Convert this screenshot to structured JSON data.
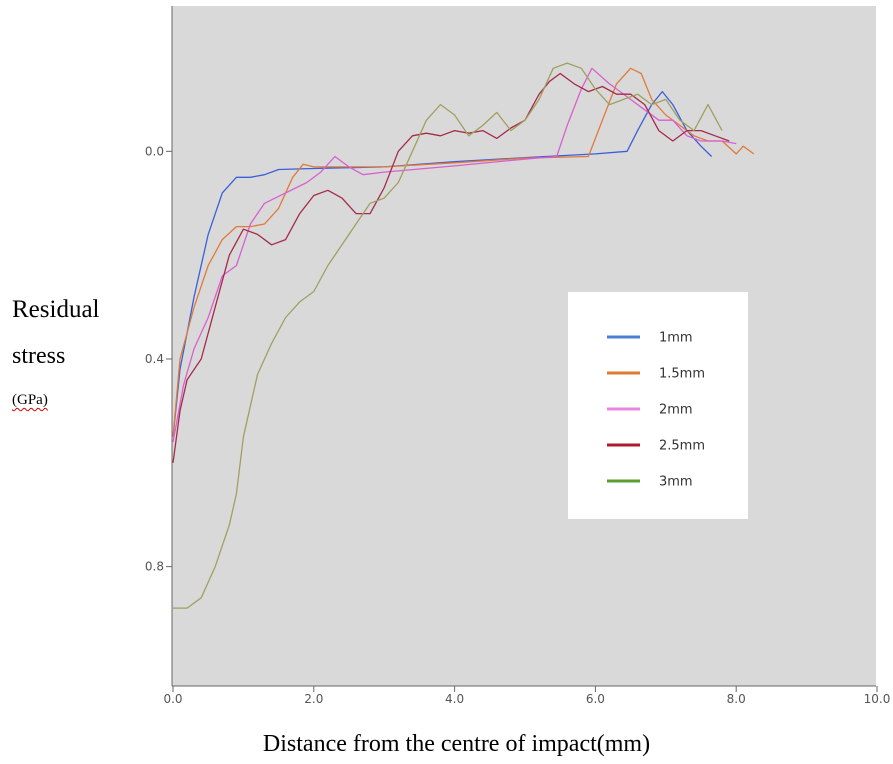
{
  "chart_data": {
    "type": "line",
    "title": "",
    "xlabel": "Distance from the centre of impact(mm)",
    "ylabel": [
      "Residual",
      "stress",
      "(GPa)"
    ],
    "xlim": [
      0,
      10
    ],
    "ylim": [
      1.03,
      -0.28
    ],
    "y_axis_inverted": true,
    "xticks": [
      "0.0",
      "2.0",
      "4.0",
      "6.0",
      "8.0",
      "10.0"
    ],
    "yticks": [
      "0.0",
      "0.4",
      "0.8"
    ],
    "xtick_values": [
      0,
      2,
      4,
      6,
      8,
      10
    ],
    "ytick_values": [
      0.0,
      0.4,
      0.8
    ],
    "background": "#d9d9d9",
    "legend_position": "center-right",
    "grid": false,
    "series": [
      {
        "name": "1mm",
        "color": "#3a5fd9",
        "legend_color": "#4a7fd6",
        "points": [
          [
            0.0,
            0.55
          ],
          [
            0.1,
            0.42
          ],
          [
            0.3,
            0.28
          ],
          [
            0.5,
            0.16
          ],
          [
            0.7,
            0.08
          ],
          [
            0.9,
            0.05
          ],
          [
            1.1,
            0.05
          ],
          [
            1.3,
            0.045
          ],
          [
            1.5,
            0.035
          ],
          [
            2.0,
            0.033
          ],
          [
            3.0,
            0.03
          ],
          [
            4.0,
            0.02
          ],
          [
            5.0,
            0.012
          ],
          [
            6.0,
            0.005
          ],
          [
            6.45,
            0.0
          ],
          [
            6.6,
            -0.04
          ],
          [
            6.8,
            -0.09
          ],
          [
            6.95,
            -0.115
          ],
          [
            7.1,
            -0.09
          ],
          [
            7.3,
            -0.04
          ],
          [
            7.5,
            -0.01
          ],
          [
            7.65,
            0.01
          ]
        ]
      },
      {
        "name": "1.5mm",
        "color": "#e07a3a",
        "legend_color": "#e07b2e",
        "points": [
          [
            0.0,
            0.55
          ],
          [
            0.1,
            0.4
          ],
          [
            0.3,
            0.3
          ],
          [
            0.5,
            0.22
          ],
          [
            0.7,
            0.17
          ],
          [
            0.9,
            0.145
          ],
          [
            1.1,
            0.145
          ],
          [
            1.3,
            0.14
          ],
          [
            1.5,
            0.11
          ],
          [
            1.7,
            0.05
          ],
          [
            1.85,
            0.025
          ],
          [
            2.0,
            0.03
          ],
          [
            3.0,
            0.03
          ],
          [
            4.0,
            0.022
          ],
          [
            5.0,
            0.013
          ],
          [
            5.9,
            0.01
          ],
          [
            6.1,
            -0.06
          ],
          [
            6.3,
            -0.13
          ],
          [
            6.5,
            -0.16
          ],
          [
            6.65,
            -0.15
          ],
          [
            6.8,
            -0.1
          ],
          [
            7.0,
            -0.07
          ],
          [
            7.2,
            -0.05
          ],
          [
            7.4,
            -0.03
          ],
          [
            7.6,
            -0.02
          ],
          [
            7.8,
            -0.02
          ],
          [
            8.0,
            0.005
          ],
          [
            8.1,
            -0.01
          ],
          [
            8.25,
            0.005
          ]
        ]
      },
      {
        "name": "2mm",
        "color": "#d95fd0",
        "legend_color": "#ea86e0",
        "points": [
          [
            0.0,
            0.56
          ],
          [
            0.15,
            0.45
          ],
          [
            0.3,
            0.38
          ],
          [
            0.5,
            0.32
          ],
          [
            0.7,
            0.24
          ],
          [
            0.9,
            0.22
          ],
          [
            1.1,
            0.14
          ],
          [
            1.3,
            0.1
          ],
          [
            1.6,
            0.08
          ],
          [
            1.9,
            0.06
          ],
          [
            2.1,
            0.04
          ],
          [
            2.3,
            0.01
          ],
          [
            2.5,
            0.03
          ],
          [
            2.7,
            0.045
          ],
          [
            3.0,
            0.04
          ],
          [
            4.0,
            0.028
          ],
          [
            5.0,
            0.015
          ],
          [
            5.45,
            0.01
          ],
          [
            5.6,
            -0.05
          ],
          [
            5.8,
            -0.12
          ],
          [
            5.95,
            -0.16
          ],
          [
            6.2,
            -0.13
          ],
          [
            6.5,
            -0.1
          ],
          [
            6.7,
            -0.08
          ],
          [
            6.9,
            -0.06
          ],
          [
            7.1,
            -0.06
          ],
          [
            7.3,
            -0.03
          ],
          [
            7.5,
            -0.02
          ],
          [
            7.8,
            -0.02
          ],
          [
            8.0,
            -0.015
          ]
        ]
      },
      {
        "name": "2.5mm",
        "color": "#a52a4a",
        "legend_color": "#b0182a",
        "points": [
          [
            0.0,
            0.6
          ],
          [
            0.1,
            0.5
          ],
          [
            0.2,
            0.44
          ],
          [
            0.4,
            0.4
          ],
          [
            0.6,
            0.3
          ],
          [
            0.8,
            0.2
          ],
          [
            1.0,
            0.15
          ],
          [
            1.2,
            0.16
          ],
          [
            1.4,
            0.18
          ],
          [
            1.6,
            0.17
          ],
          [
            1.8,
            0.12
          ],
          [
            2.0,
            0.085
          ],
          [
            2.2,
            0.075
          ],
          [
            2.4,
            0.09
          ],
          [
            2.6,
            0.12
          ],
          [
            2.8,
            0.12
          ],
          [
            3.0,
            0.07
          ],
          [
            3.2,
            0.0
          ],
          [
            3.4,
            -0.03
          ],
          [
            3.6,
            -0.035
          ],
          [
            3.8,
            -0.03
          ],
          [
            4.0,
            -0.04
          ],
          [
            4.2,
            -0.035
          ],
          [
            4.4,
            -0.04
          ],
          [
            4.6,
            -0.025
          ],
          [
            4.8,
            -0.045
          ],
          [
            5.0,
            -0.06
          ],
          [
            5.2,
            -0.11
          ],
          [
            5.35,
            -0.135
          ],
          [
            5.5,
            -0.15
          ],
          [
            5.7,
            -0.13
          ],
          [
            5.9,
            -0.115
          ],
          [
            6.1,
            -0.125
          ],
          [
            6.3,
            -0.11
          ],
          [
            6.5,
            -0.11
          ],
          [
            6.7,
            -0.09
          ],
          [
            6.9,
            -0.04
          ],
          [
            7.1,
            -0.02
          ],
          [
            7.3,
            -0.04
          ],
          [
            7.5,
            -0.04
          ],
          [
            7.7,
            -0.03
          ],
          [
            7.9,
            -0.02
          ]
        ]
      },
      {
        "name": "3mm",
        "color": "#a0a060",
        "legend_color": "#5c9e31",
        "points": [
          [
            0.0,
            0.88
          ],
          [
            0.2,
            0.88
          ],
          [
            0.4,
            0.86
          ],
          [
            0.6,
            0.8
          ],
          [
            0.8,
            0.72
          ],
          [
            0.9,
            0.66
          ],
          [
            1.0,
            0.55
          ],
          [
            1.2,
            0.43
          ],
          [
            1.4,
            0.37
          ],
          [
            1.6,
            0.32
          ],
          [
            1.8,
            0.29
          ],
          [
            2.0,
            0.27
          ],
          [
            2.2,
            0.22
          ],
          [
            2.4,
            0.18
          ],
          [
            2.6,
            0.14
          ],
          [
            2.8,
            0.1
          ],
          [
            3.0,
            0.09
          ],
          [
            3.2,
            0.06
          ],
          [
            3.4,
            0.0
          ],
          [
            3.6,
            -0.06
          ],
          [
            3.8,
            -0.09
          ],
          [
            4.0,
            -0.07
          ],
          [
            4.2,
            -0.03
          ],
          [
            4.4,
            -0.05
          ],
          [
            4.6,
            -0.075
          ],
          [
            4.8,
            -0.04
          ],
          [
            5.0,
            -0.06
          ],
          [
            5.2,
            -0.1
          ],
          [
            5.4,
            -0.16
          ],
          [
            5.6,
            -0.17
          ],
          [
            5.8,
            -0.16
          ],
          [
            6.0,
            -0.12
          ],
          [
            6.2,
            -0.09
          ],
          [
            6.4,
            -0.1
          ],
          [
            6.6,
            -0.11
          ],
          [
            6.8,
            -0.09
          ],
          [
            7.0,
            -0.1
          ],
          [
            7.2,
            -0.06
          ],
          [
            7.4,
            -0.04
          ],
          [
            7.6,
            -0.09
          ],
          [
            7.8,
            -0.04
          ]
        ]
      }
    ]
  }
}
